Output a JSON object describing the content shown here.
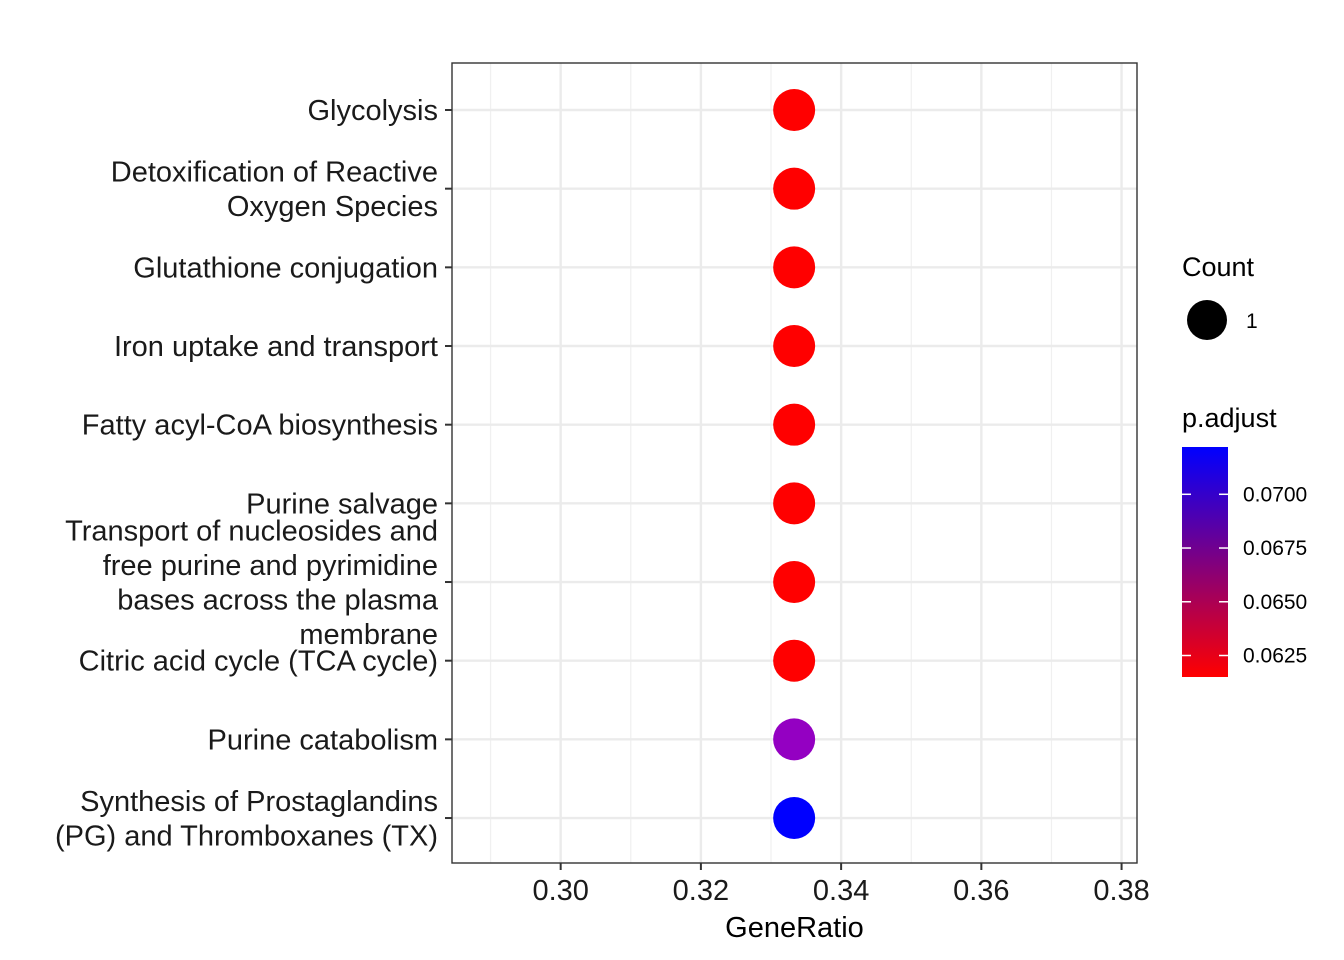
{
  "chart_data": {
    "type": "scatter",
    "xlabel": "GeneRatio",
    "ylabel": "",
    "xlim": [
      0.2845,
      0.3822
    ],
    "x_ticks": [
      "0.30",
      "0.32",
      "0.34",
      "0.36",
      "0.38"
    ],
    "x_tick_values": [
      0.3,
      0.32,
      0.34,
      0.36,
      0.38
    ],
    "grid": true,
    "legend_position": "right",
    "categories": [
      [
        "Glycolysis"
      ],
      [
        "Detoxification of Reactive",
        "Oxygen Species"
      ],
      [
        "Glutathione conjugation"
      ],
      [
        "Iron uptake and transport"
      ],
      [
        "Fatty acyl-CoA biosynthesis"
      ],
      [
        "Purine salvage"
      ],
      [
        "Transport of nucleosides and",
        "free purine and pyrimidine",
        "bases across the plasma",
        "membrane"
      ],
      [
        "Citric acid cycle (TCA cycle)"
      ],
      [
        "Purine catabolism"
      ],
      [
        "Synthesis of Prostaglandins",
        "(PG) and Thromboxanes (TX)"
      ]
    ],
    "points": [
      {
        "x": 0.3333,
        "count": 1,
        "p_adjust": 0.062,
        "color": "#ff0000"
      },
      {
        "x": 0.3333,
        "count": 1,
        "p_adjust": 0.062,
        "color": "#ff0000"
      },
      {
        "x": 0.3333,
        "count": 1,
        "p_adjust": 0.062,
        "color": "#ff0000"
      },
      {
        "x": 0.3333,
        "count": 1,
        "p_adjust": 0.062,
        "color": "#ff0000"
      },
      {
        "x": 0.3333,
        "count": 1,
        "p_adjust": 0.062,
        "color": "#ff0000"
      },
      {
        "x": 0.3333,
        "count": 1,
        "p_adjust": 0.062,
        "color": "#ff0000"
      },
      {
        "x": 0.3333,
        "count": 1,
        "p_adjust": 0.062,
        "color": "#ff0000"
      },
      {
        "x": 0.3333,
        "count": 1,
        "p_adjust": 0.062,
        "color": "#ff0000"
      },
      {
        "x": 0.3333,
        "count": 1,
        "p_adjust": 0.0698,
        "color": "#9400c2"
      },
      {
        "x": 0.3333,
        "count": 1,
        "p_adjust": 0.0721,
        "color": "#0000ff"
      }
    ],
    "legend_size": {
      "title": "Count",
      "labels": [
        "1"
      ],
      "values": [
        1
      ]
    },
    "legend_color": {
      "title": "p.adjust",
      "range": [
        0.0615,
        0.0722
      ],
      "ticks": [
        "0.0625",
        "0.0650",
        "0.0675",
        "0.0700"
      ],
      "tick_values": [
        0.0625,
        0.065,
        0.0675,
        0.07
      ],
      "low_color": "#ff0000",
      "high_color": "#0000ff"
    }
  }
}
